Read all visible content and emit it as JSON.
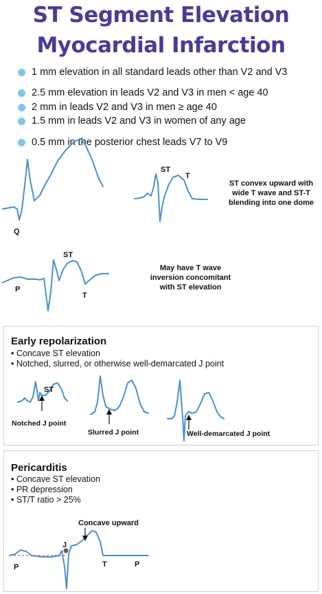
{
  "title_line1": "ST Segment Elevation",
  "title_line2": "Myocardial Infarction",
  "bullets": [
    "1 mm elevation in all standard leads other than V2 and V3",
    "2.5 mm elevation in leads V2 and V3 in men < age 40",
    "2 mm in leads V2 and V3 in men ≥ age 40",
    "1.5 mm in leads V2 and V3 in women of any age",
    "0.5 mm in the posterior chest leads V7 to V9"
  ],
  "colors": {
    "title": "#4a3b96",
    "bullet_dot": "#7fc6ea",
    "wave": "#4a8fcf"
  },
  "ecg1": {
    "q_label": "Q"
  },
  "ecg2": {
    "st_label": "ST",
    "t_label": "T",
    "note_lines": [
      "ST convex upward with",
      "wide T wave and ST-T",
      "blending into one dome"
    ]
  },
  "ecg3": {
    "p_label": "P",
    "st_label": "ST",
    "t_label": "T",
    "note_lines": [
      "May have T wave",
      "inversion concomitant",
      "with ST elevation"
    ]
  },
  "early_repol": {
    "title": "Early repolarization",
    "bullets": [
      "• Concave ST elevation",
      "• Notched, slurred, or otherwise well-demarcated J point"
    ],
    "st_label": "ST",
    "labels": [
      "Notched J point",
      "Slurred J point",
      "Well-demarcated J point"
    ]
  },
  "pericarditis": {
    "title": "Pericarditis",
    "bullets": [
      "• Concave ST elevation",
      "• PR depression",
      "• ST/T ratio > 25%"
    ],
    "concave_label": "Concave upward",
    "j_label": "J",
    "p_label": "P",
    "t_label": "T",
    "p2_label": "P"
  }
}
